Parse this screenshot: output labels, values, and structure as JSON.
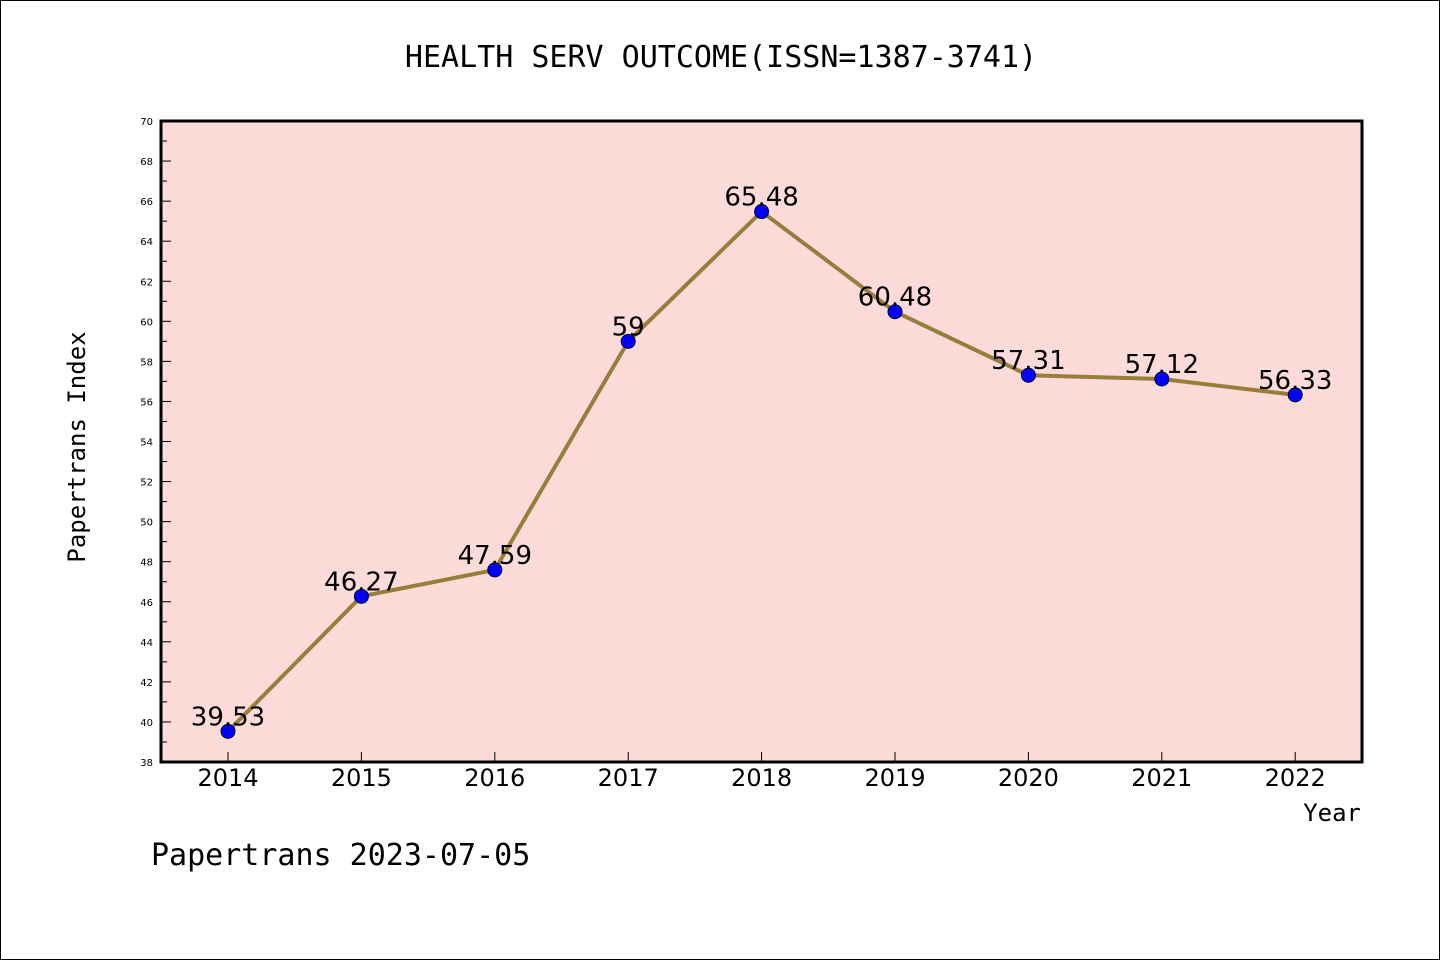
{
  "chart_data": {
    "type": "line",
    "title": "HEALTH SERV OUTCOME(ISSN=1387-3741)",
    "xlabel": "Year",
    "ylabel": "Papertrans Index",
    "x": [
      "2014",
      "2015",
      "2016",
      "2017",
      "2018",
      "2019",
      "2020",
      "2021",
      "2022"
    ],
    "series": [
      {
        "values": [
          39.53,
          46.27,
          47.59,
          59,
          65.48,
          60.48,
          57.31,
          57.12,
          56.33
        ],
        "labels": [
          "39.53",
          "46.27",
          "47.59",
          "59",
          "65.48",
          "60.48",
          "57.31",
          "57.12",
          "56.33"
        ]
      }
    ],
    "ylim": [
      38,
      70
    ],
    "yticks": [
      "38",
      "40",
      "42",
      "44",
      "46",
      "48",
      "50",
      "52",
      "54",
      "56",
      "58",
      "60",
      "62",
      "64",
      "66",
      "68",
      "70"
    ],
    "grid": false,
    "colors": {
      "plot_background": "#fddbd9",
      "line": "#9a7d3a",
      "marker": "#0000ff"
    }
  },
  "footer": {
    "text": "Papertrans 2023-07-05"
  }
}
